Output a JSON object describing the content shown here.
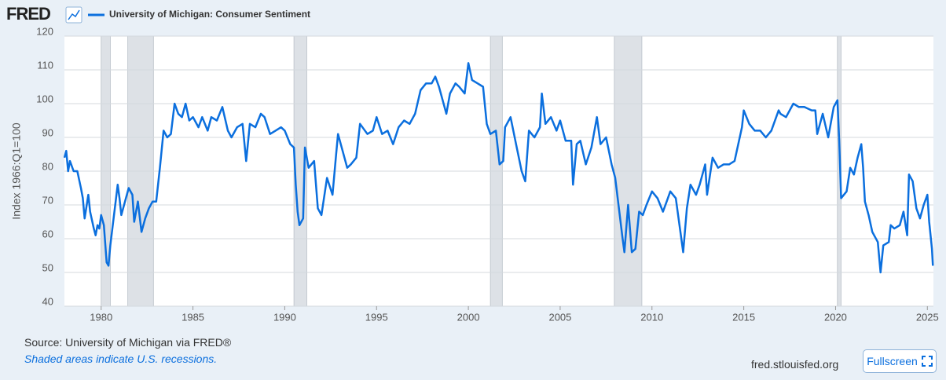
{
  "header": {
    "logo": "FRED"
  },
  "chart_data": {
    "type": "line",
    "y_label": "Index 1966:Q1=100",
    "x": [
      1978.0,
      1978.1,
      1978.2,
      1978.3,
      1978.5,
      1978.7,
      1978.9,
      1979.0,
      1979.1,
      1979.3,
      1979.4,
      1979.6,
      1979.7,
      1979.8,
      1979.9,
      1980.0,
      1980.15,
      1980.3,
      1980.4,
      1980.5,
      1980.7,
      1980.9,
      1981.0,
      1981.1,
      1981.3,
      1981.5,
      1981.7,
      1981.8,
      1982.0,
      1982.2,
      1982.4,
      1982.6,
      1982.8,
      1983.0,
      1983.2,
      1983.4,
      1983.6,
      1983.8,
      1984.0,
      1984.2,
      1984.4,
      1984.6,
      1984.8,
      1985.0,
      1985.3,
      1985.5,
      1985.8,
      1986.0,
      1986.3,
      1986.6,
      1986.9,
      1987.1,
      1987.4,
      1987.7,
      1987.9,
      1988.1,
      1988.4,
      1988.7,
      1988.9,
      1989.2,
      1989.5,
      1989.8,
      1990.0,
      1990.3,
      1990.5,
      1990.6,
      1990.7,
      1990.8,
      1991.0,
      1991.1,
      1991.3,
      1991.6,
      1991.8,
      1992.0,
      1992.3,
      1992.6,
      1992.8,
      1992.9,
      1993.1,
      1993.4,
      1993.6,
      1993.9,
      1994.1,
      1994.5,
      1994.8,
      1995.0,
      1995.3,
      1995.6,
      1995.9,
      1996.2,
      1996.5,
      1996.8,
      1997.1,
      1997.4,
      1997.7,
      1998.0,
      1998.2,
      1998.4,
      1998.8,
      1999.0,
      1999.3,
      1999.5,
      1999.8,
      2000.0,
      2000.2,
      2000.5,
      2000.8,
      2001.0,
      2001.2,
      2001.5,
      2001.7,
      2001.9,
      2002.0,
      2002.3,
      2002.6,
      2002.9,
      2003.1,
      2003.3,
      2003.6,
      2003.9,
      2004.0,
      2004.2,
      2004.5,
      2004.8,
      2005.0,
      2005.3,
      2005.6,
      2005.7,
      2005.9,
      2006.1,
      2006.4,
      2006.7,
      2007.0,
      2007.2,
      2007.5,
      2007.8,
      2008.0,
      2008.2,
      2008.4,
      2008.5,
      2008.7,
      2008.9,
      2009.1,
      2009.3,
      2009.5,
      2009.7,
      2010.0,
      2010.3,
      2010.6,
      2010.8,
      2011.0,
      2011.3,
      2011.5,
      2011.7,
      2011.9,
      2012.1,
      2012.4,
      2012.6,
      2012.9,
      2013.0,
      2013.3,
      2013.6,
      2013.9,
      2014.2,
      2014.5,
      2014.9,
      2015.0,
      2015.3,
      2015.6,
      2015.9,
      2016.2,
      2016.5,
      2016.9,
      2017.0,
      2017.3,
      2017.7,
      2018.0,
      2018.3,
      2018.7,
      2018.9,
      2019.0,
      2019.3,
      2019.6,
      2019.9,
      2020.1,
      2020.2,
      2020.3,
      2020.6,
      2020.8,
      2021.0,
      2021.2,
      2021.4,
      2021.5,
      2021.6,
      2021.8,
      2022.0,
      2022.3,
      2022.45,
      2022.6,
      2022.9,
      2023.0,
      2023.2,
      2023.5,
      2023.7,
      2023.9,
      2024.0,
      2024.2,
      2024.4,
      2024.6,
      2024.8,
      2025.0,
      2025.1,
      2025.25,
      2025.3
    ],
    "series": [
      {
        "name": "University of Michigan: Consumer Sentiment",
        "color": "#0b6fde",
        "values": [
          84,
          86,
          80,
          83,
          80,
          80,
          75,
          72,
          66,
          73,
          68,
          63,
          61,
          64,
          63,
          67,
          64,
          53,
          52,
          58,
          67,
          76,
          72,
          67,
          71,
          75,
          73,
          65,
          71,
          62,
          66,
          69,
          71,
          71,
          81,
          92,
          90,
          91,
          100,
          97,
          96,
          100,
          95,
          96,
          93,
          96,
          92,
          96,
          95,
          99,
          92,
          90,
          93,
          94,
          83,
          94,
          93,
          97,
          96,
          91,
          92,
          93,
          92,
          88,
          87,
          76,
          68,
          64,
          66,
          87,
          81,
          83,
          69,
          67,
          78,
          73,
          85,
          91,
          87,
          81,
          82,
          84,
          94,
          91,
          92,
          96,
          91,
          92,
          88,
          93,
          95,
          94,
          97,
          104,
          106,
          106,
          108,
          105,
          97,
          103,
          106,
          105,
          103,
          112,
          107,
          106,
          105,
          94,
          91,
          92,
          82,
          83,
          93,
          96,
          88,
          80,
          77,
          92,
          90,
          93,
          103,
          94,
          96,
          92,
          95,
          89,
          89,
          76,
          88,
          89,
          82,
          87,
          96,
          88,
          90,
          82,
          78,
          69,
          60,
          56,
          70,
          56,
          57,
          68,
          67,
          70,
          74,
          72,
          68,
          71,
          74,
          72,
          64,
          56,
          69,
          76,
          73,
          76,
          82,
          73,
          84,
          81,
          82,
          82,
          83,
          93,
          98,
          94,
          92,
          92,
          90,
          92,
          98,
          97,
          96,
          100,
          99,
          99,
          98,
          98,
          91,
          97,
          90,
          99,
          101,
          89,
          72,
          74,
          81,
          79,
          84,
          88,
          81,
          71,
          67,
          62,
          59,
          50,
          58,
          59,
          64,
          63,
          64,
          68,
          61,
          79,
          77,
          69,
          66,
          70,
          73,
          65,
          57,
          52
        ]
      }
    ],
    "xlim": [
      1978.0,
      2025.33
    ],
    "ylim": [
      40,
      120
    ],
    "xticks": [
      1980,
      1985,
      1990,
      1995,
      2000,
      2005,
      2010,
      2015,
      2020,
      2025
    ],
    "yticks": [
      40,
      50,
      60,
      70,
      80,
      90,
      100,
      110,
      120
    ],
    "grid": true,
    "recessions": [
      [
        1980.0,
        1980.5
      ],
      [
        1981.45,
        1982.85
      ],
      [
        1990.5,
        1991.2
      ],
      [
        2001.2,
        2001.85
      ],
      [
        2007.95,
        2009.45
      ],
      [
        2020.1,
        2020.3
      ]
    ],
    "recession_color": "#dde1e6"
  },
  "footer": {
    "source": "Source: University of Michigan via FRED®",
    "note": "Shaded areas indicate U.S. recessions.",
    "site": "fred.stlouisfed.org",
    "button": "Fullscreen"
  }
}
